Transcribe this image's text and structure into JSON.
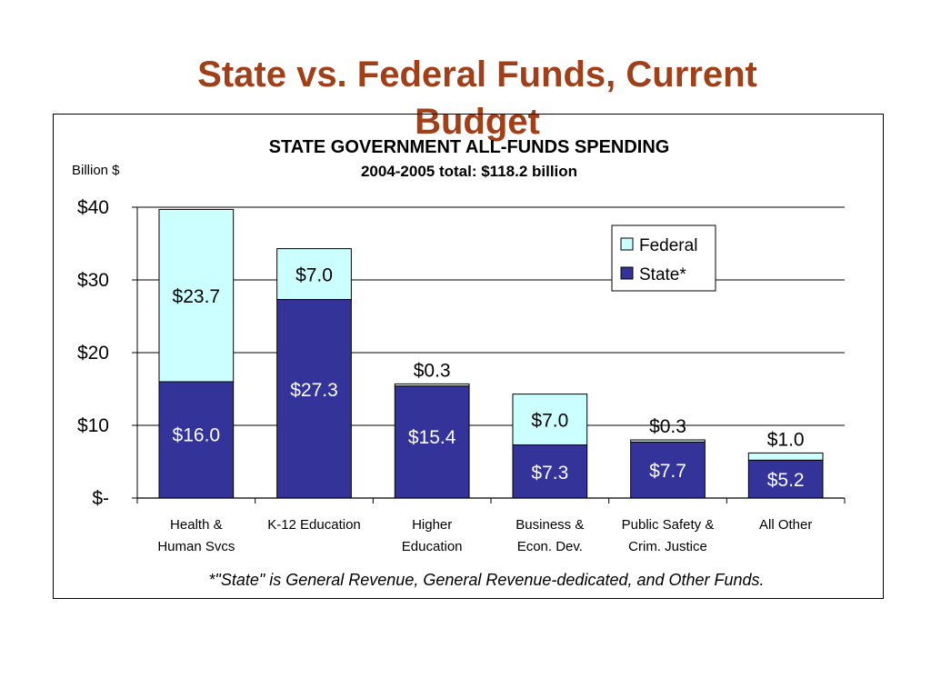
{
  "slide": {
    "title": "State vs. Federal Funds, Current Budget"
  },
  "chart_data": {
    "type": "bar",
    "stacked": true,
    "title": "STATE GOVERNMENT ALL-FUNDS SPENDING",
    "subtitle": "2004-2005 total: $118.2 billion",
    "ylabel": "Billion $",
    "ylim": [
      0,
      40
    ],
    "yticks": [
      0,
      10,
      20,
      30,
      40
    ],
    "ytick_labels": [
      "$-",
      "$10",
      "$20",
      "$30",
      "$40"
    ],
    "grid": true,
    "legend_position": "top-right",
    "categories": [
      [
        "Health &",
        "Human Svcs"
      ],
      [
        "K-12 Education"
      ],
      [
        "Higher",
        "Education"
      ],
      [
        "Business &",
        "Econ. Dev."
      ],
      [
        "Public Safety &",
        "Crim. Justice"
      ],
      [
        "All Other"
      ]
    ],
    "series": [
      {
        "name": "State*",
        "color": "#333399",
        "values": [
          16.0,
          27.3,
          15.4,
          7.3,
          7.7,
          5.2
        ],
        "labels": [
          "$16.0",
          "$27.3",
          "$15.4",
          "$7.3",
          "$7.7",
          "$5.2"
        ],
        "label_color": "#ffffff"
      },
      {
        "name": "Federal",
        "color": "#CCFFFF",
        "values": [
          23.7,
          7.0,
          0.3,
          7.0,
          0.3,
          1.0
        ],
        "labels": [
          "$23.7",
          "$7.0",
          "$0.3",
          "$7.0",
          "$0.3",
          "$1.0"
        ],
        "label_color": "#000000"
      }
    ],
    "footnote": "*\"State\" is General Revenue, General Revenue-dedicated, and Other Funds."
  }
}
